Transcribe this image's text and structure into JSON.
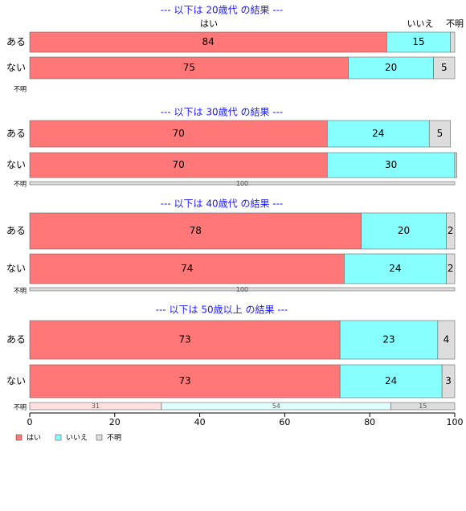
{
  "chart_data": {
    "type": "bar",
    "orientation": "horizontal",
    "stacked": true,
    "xlim": [
      0,
      100
    ],
    "x_ticks": [
      "0",
      "20",
      "40",
      "60",
      "80",
      "100"
    ],
    "colors": {
      "はい": "#ff7777",
      "いいえ": "#88ffff",
      "不明": "#dddddd"
    },
    "series_names": [
      "はい",
      "いいえ",
      "不明"
    ],
    "top_headers": [
      "はい",
      "いいえ",
      "不明"
    ],
    "legend": [
      "はい",
      "いいえ",
      "不明"
    ],
    "panels": [
      {
        "title": "--- 以下は 20歳代 の結果 ---",
        "rows": [
          {
            "label": "ある",
            "values": [
              84,
              15,
              1
            ],
            "labels": [
              "84",
              "15",
              ""
            ]
          },
          {
            "label": "ない",
            "values": [
              75,
              20,
              5
            ],
            "labels": [
              "75",
              "20",
              "5"
            ]
          },
          {
            "label": "不明",
            "values": [],
            "labels": []
          }
        ]
      },
      {
        "title": "--- 以下は 30歳代 の結果 ---",
        "rows": [
          {
            "label": "ある",
            "values": [
              70,
              24,
              5
            ],
            "labels": [
              "70",
              "24",
              "5"
            ]
          },
          {
            "label": "ない",
            "values": [
              70,
              30,
              0.5
            ],
            "labels": [
              "70",
              "30",
              ""
            ]
          },
          {
            "label": "不明",
            "values": [
              0,
              0,
              100
            ],
            "labels": [
              "",
              "",
              "100"
            ]
          }
        ]
      },
      {
        "title": "--- 以下は 40歳代 の結果 ---",
        "rows": [
          {
            "label": "ある",
            "values": [
              78,
              20,
              2
            ],
            "labels": [
              "78",
              "20",
              "2"
            ]
          },
          {
            "label": "ない",
            "values": [
              74,
              24,
              2
            ],
            "labels": [
              "74",
              "24",
              "2"
            ]
          },
          {
            "label": "不明",
            "values": [
              0,
              0,
              100
            ],
            "labels": [
              "",
              "",
              "100"
            ]
          }
        ]
      },
      {
        "title": "--- 以下は 50歳以上 の結果 ---",
        "rows": [
          {
            "label": "ある",
            "values": [
              73,
              23,
              4
            ],
            "labels": [
              "73",
              "23",
              "4"
            ]
          },
          {
            "label": "ない",
            "values": [
              73,
              24,
              3
            ],
            "labels": [
              "73",
              "24",
              "3"
            ]
          },
          {
            "label": "不明",
            "values": [
              31,
              54,
              15
            ],
            "labels": [
              "31",
              "54",
              "15"
            ]
          }
        ]
      }
    ]
  }
}
